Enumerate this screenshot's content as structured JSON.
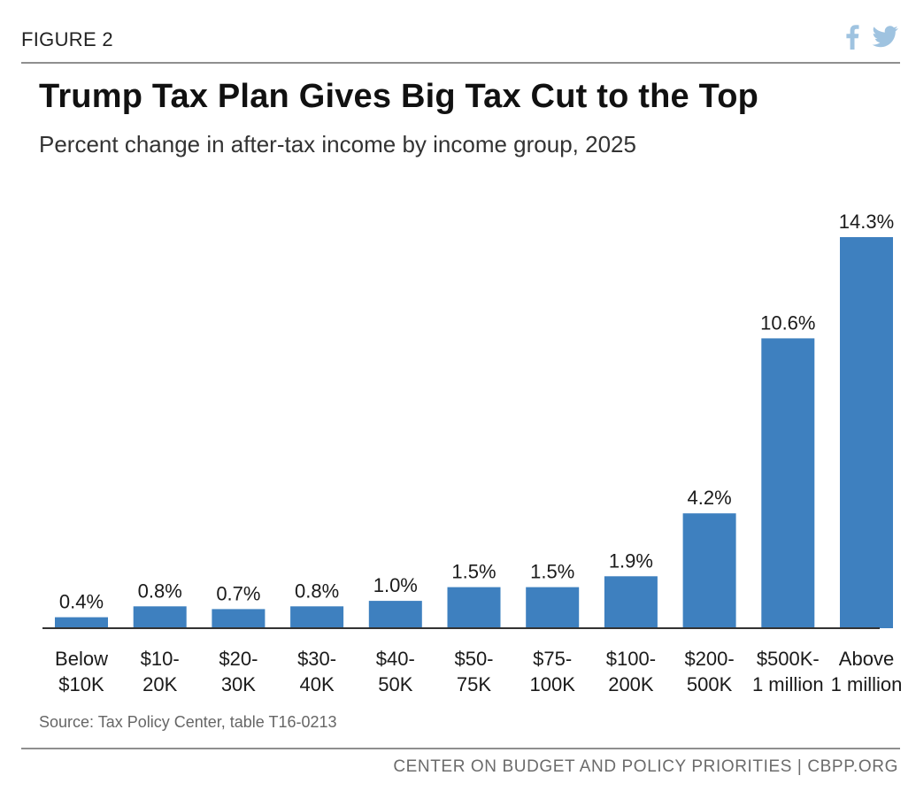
{
  "figure_label": "FIGURE 2",
  "social": {
    "facebook_icon": "facebook-icon",
    "twitter_icon": "twitter-icon",
    "icon_color": "#9fc3e0"
  },
  "chart_data": {
    "type": "bar",
    "title": "Trump Tax Plan Gives Big Tax Cut to the Top",
    "subtitle": "Percent change in after-tax income by income group, 2025",
    "categories": [
      [
        "Below",
        "$10K"
      ],
      [
        "$10-",
        "20K"
      ],
      [
        "$20-",
        "30K"
      ],
      [
        "$30-",
        "40K"
      ],
      [
        "$40-",
        "50K"
      ],
      [
        "$50-",
        "75K"
      ],
      [
        "$75-",
        "100K"
      ],
      [
        "$100-",
        "200K"
      ],
      [
        "$200-",
        "500K"
      ],
      [
        "$500K-",
        "1 million"
      ],
      [
        "Above",
        "1 million"
      ]
    ],
    "values": [
      0.4,
      0.8,
      0.7,
      0.8,
      1.0,
      1.5,
      1.5,
      1.9,
      4.2,
      10.6,
      14.3
    ],
    "data_labels": [
      "0.4%",
      "0.8%",
      "0.7%",
      "0.8%",
      "1.0%",
      "1.5%",
      "1.5%",
      "1.9%",
      "4.2%",
      "10.6%",
      "14.3%"
    ],
    "xlabel": "",
    "ylabel": "",
    "ylim": [
      0,
      14.3
    ],
    "bar_color": "#3e80bf",
    "grid": false,
    "legend": "none"
  },
  "source": "Source: Tax Policy Center, table T16-0213",
  "footer": "CENTER ON BUDGET AND POLICY PRIORITIES | CBPP.ORG"
}
